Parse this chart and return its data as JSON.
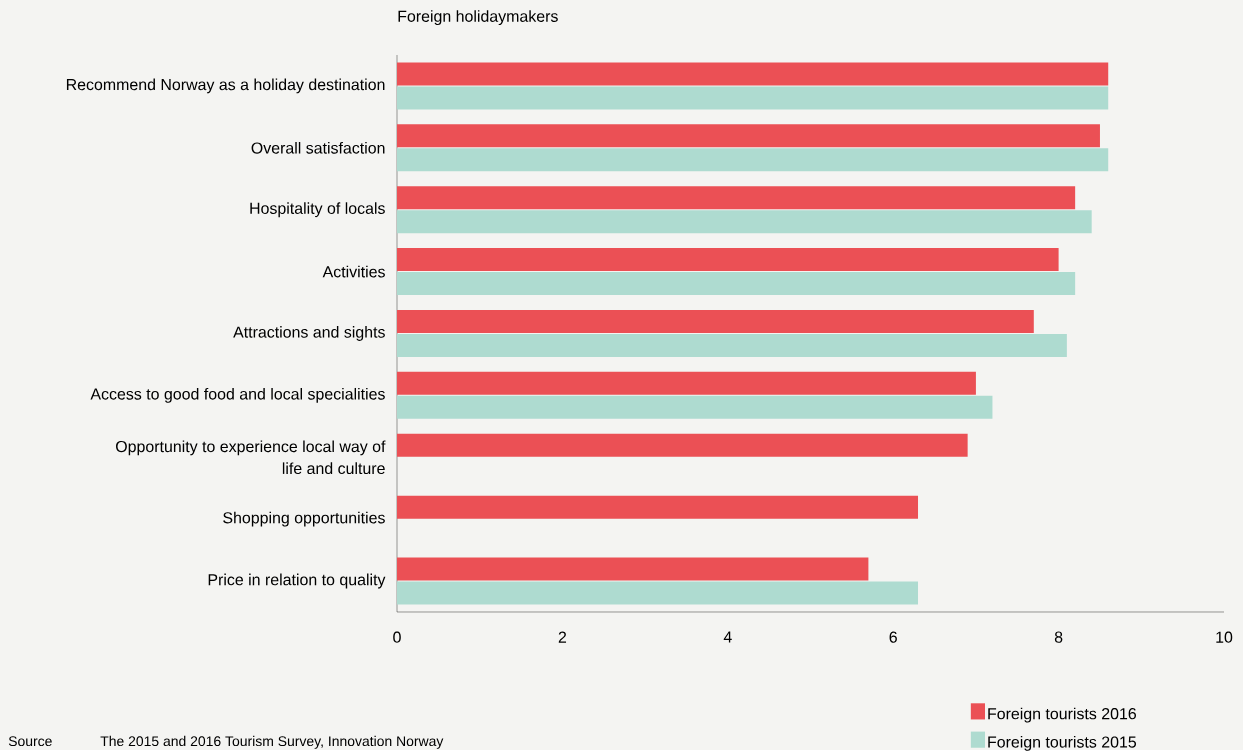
{
  "chart_data": {
    "type": "bar",
    "orientation": "horizontal",
    "title": "Foreign holidaymakers",
    "categories": [
      "Recommend Norway as a holiday destination",
      "Overall satisfaction",
      "Hospitality of locals",
      "Activities",
      "Attractions and sights",
      "Access to good food and local specialities",
      "Opportunity to experience local way of life and culture",
      "Shopping opportunities",
      "Price in relation to quality"
    ],
    "series": [
      {
        "name": "Foreign tourists 2016",
        "color": "#eb5055",
        "values": [
          8.6,
          8.5,
          8.2,
          8.0,
          7.7,
          7.0,
          6.9,
          6.3,
          5.7
        ]
      },
      {
        "name": "Foreign tourists 2015",
        "color": "#aedbd0",
        "values": [
          8.6,
          8.6,
          8.4,
          8.2,
          8.1,
          7.2,
          null,
          null,
          6.3
        ]
      }
    ],
    "xlim": [
      0,
      10
    ],
    "xticks": [
      0,
      2,
      4,
      6,
      8,
      10
    ],
    "grid": false,
    "legend": "bottom right",
    "annotations": [
      "Source",
      "The 2015 and 2016 Tourism Survey, Innovation Norway"
    ]
  }
}
